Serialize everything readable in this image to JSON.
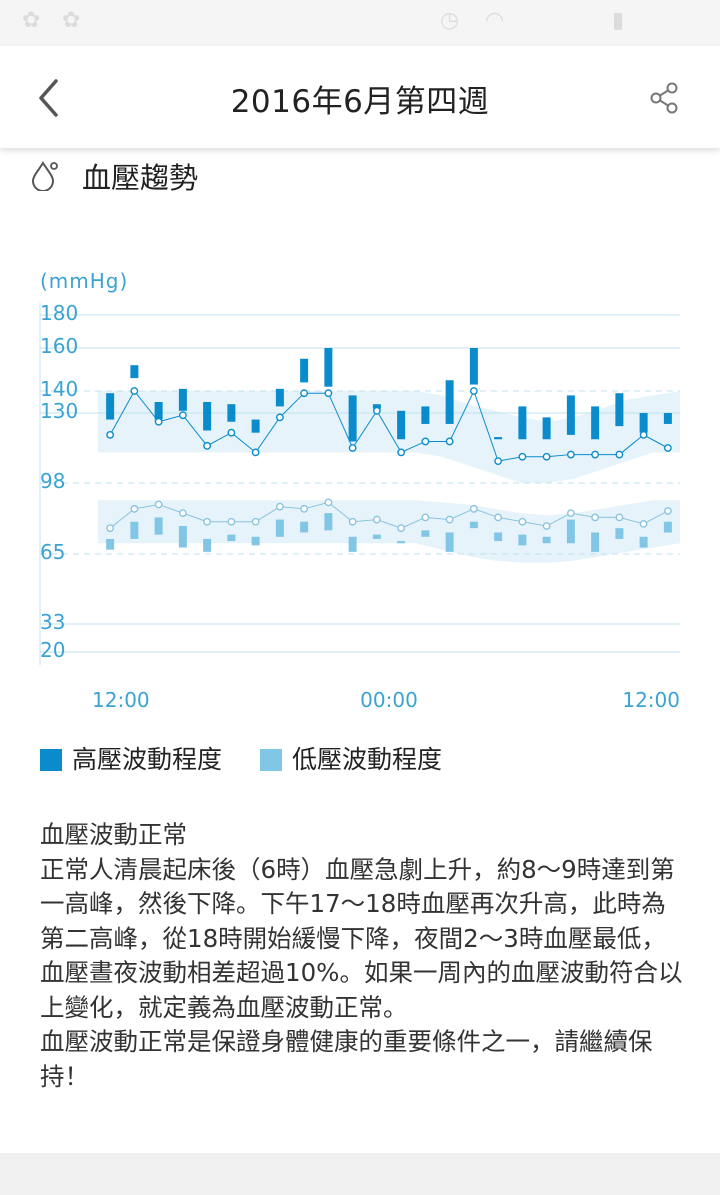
{
  "header": {
    "title": "2016年6月第四週"
  },
  "section": {
    "title": "血壓趨勢"
  },
  "legend": {
    "high": {
      "label": "高壓波動程度",
      "color": "#0a8ccc"
    },
    "low": {
      "label": "低壓波動程度",
      "color": "#82c6e6"
    }
  },
  "description": {
    "heading": "血壓波動正常",
    "body": "正常人清晨起床後（6時）血壓急劇上升，約8～9時達到第一高峰，然後下降。下午17～18時血壓再次升高，此時為第二高峰，從18時開始緩慢下降，夜間2～3時血壓最低，血壓晝夜波動相差超過10%。如果一周內的血壓波動符合以上變化，就定義為血壓波動正常。",
    "closing": "血壓波動正常是保證身體健康的重要條件之一，請繼續保持！"
  },
  "chart_data": {
    "type": "bar",
    "unit": "(mmHg)",
    "ylim": [
      20,
      180
    ],
    "y_ticks": [
      180,
      160,
      140,
      130,
      98,
      65,
      33,
      20
    ],
    "x_tick_labels": [
      "12:00",
      "00:00",
      "12:00"
    ],
    "x_tick_positions": [
      0,
      12,
      24
    ],
    "reference_lines": [
      140,
      98,
      65
    ],
    "high_band": {
      "upper": [
        140,
        140,
        140,
        140,
        140,
        140,
        140,
        140,
        140,
        140,
        140,
        140,
        140,
        138,
        134,
        131,
        128,
        126,
        128,
        132,
        136,
        138,
        140
      ],
      "lower": [
        112,
        112,
        112,
        112,
        112,
        112,
        112,
        112,
        112,
        112,
        112,
        112,
        112,
        110,
        106,
        102,
        98,
        98,
        100,
        104,
        108,
        112,
        112
      ]
    },
    "low_band": {
      "upper": [
        90,
        90,
        90,
        90,
        90,
        90,
        90,
        90,
        90,
        90,
        90,
        90,
        90,
        89,
        88,
        86,
        84,
        83,
        84,
        86,
        88,
        90,
        90
      ],
      "lower": [
        70,
        70,
        70,
        70,
        70,
        70,
        70,
        70,
        70,
        70,
        70,
        70,
        70,
        67,
        64,
        62,
        61,
        61,
        62,
        64,
        66,
        68,
        70
      ]
    },
    "series": [
      {
        "name": "高壓波動程度",
        "x": [
          0,
          1,
          2,
          3,
          4,
          5,
          6,
          7,
          8,
          9,
          10,
          11,
          12,
          13,
          14,
          15,
          16,
          17,
          18,
          19,
          20,
          21,
          22,
          23
        ],
        "line": [
          120,
          140,
          126,
          129,
          115,
          121,
          112,
          128,
          139,
          139,
          114,
          131,
          112,
          117,
          117,
          140,
          108,
          110,
          110,
          111,
          111,
          111,
          120,
          114
        ],
        "bars": [
          [
            127,
            139
          ],
          [
            146,
            152
          ],
          [
            127,
            135
          ],
          [
            131,
            141
          ],
          [
            122,
            135
          ],
          [
            126,
            134
          ],
          [
            121,
            127
          ],
          [
            133,
            141
          ],
          [
            144,
            155
          ],
          [
            142,
            160
          ],
          [
            117,
            138
          ],
          [
            132,
            134
          ],
          [
            118,
            131
          ],
          [
            125,
            133
          ],
          [
            125,
            145
          ],
          [
            143,
            160
          ],
          [
            118,
            119
          ],
          [
            118,
            133
          ],
          [
            118,
            128
          ],
          [
            120,
            138
          ],
          [
            118,
            133
          ],
          [
            124,
            139
          ],
          [
            121,
            130
          ],
          [
            125,
            130
          ]
        ]
      },
      {
        "name": "低壓波動程度",
        "x": [
          0,
          1,
          2,
          3,
          4,
          5,
          6,
          7,
          8,
          9,
          10,
          11,
          12,
          13,
          14,
          15,
          16,
          17,
          18,
          19,
          20,
          21,
          22,
          23
        ],
        "line": [
          77,
          86,
          88,
          84,
          80,
          80,
          80,
          87,
          86,
          89,
          80,
          81,
          77,
          82,
          81,
          86,
          82,
          80,
          78,
          84,
          82,
          82,
          79,
          85
        ],
        "bars": [
          [
            67,
            72
          ],
          [
            72,
            80
          ],
          [
            74,
            82
          ],
          [
            68,
            78
          ],
          [
            66,
            72
          ],
          [
            71,
            74
          ],
          [
            69,
            73
          ],
          [
            73,
            81
          ],
          [
            75,
            80
          ],
          [
            76,
            84
          ],
          [
            66,
            73
          ],
          [
            72,
            74
          ],
          [
            70,
            71
          ],
          [
            73,
            76
          ],
          [
            66,
            75
          ],
          [
            77,
            80
          ],
          [
            71,
            75
          ],
          [
            69,
            74
          ],
          [
            70,
            73
          ],
          [
            70,
            81
          ],
          [
            66,
            75
          ],
          [
            72,
            77
          ],
          [
            68,
            73
          ],
          [
            75,
            80
          ]
        ]
      }
    ]
  }
}
